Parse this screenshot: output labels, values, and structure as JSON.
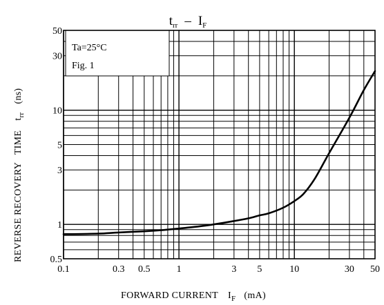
{
  "chart_data": {
    "type": "line",
    "title": {
      "main": "t",
      "main_sub": "rr",
      "dash": "–",
      "var": "I",
      "var_sub": "F"
    },
    "xlabel": {
      "text": "FORWARD CURRENT",
      "var": "I",
      "var_sub": "F",
      "unit": "(mA)"
    },
    "ylabel": {
      "text": "REVERSE RECOVERY   TIME",
      "var": "t",
      "var_sub": "rr",
      "unit": "(ns)"
    },
    "x_scale": "log",
    "y_scale": "log",
    "xlim": [
      0.1,
      50
    ],
    "ylim": [
      0.5,
      50
    ],
    "x_ticks": [
      {
        "value": 0.1,
        "label": "0.1"
      },
      {
        "value": 0.3,
        "label": "0.3"
      },
      {
        "value": 0.5,
        "label": "0.5"
      },
      {
        "value": 1,
        "label": "1"
      },
      {
        "value": 3,
        "label": "3"
      },
      {
        "value": 5,
        "label": "5"
      },
      {
        "value": 10,
        "label": "10"
      },
      {
        "value": 30,
        "label": "30"
      },
      {
        "value": 50,
        "label": "50"
      }
    ],
    "y_ticks": [
      {
        "value": 0.5,
        "label": "0.5"
      },
      {
        "value": 1,
        "label": "1"
      },
      {
        "value": 3,
        "label": "3"
      },
      {
        "value": 5,
        "label": "5"
      },
      {
        "value": 10,
        "label": "10"
      },
      {
        "value": 30,
        "label": "30"
      },
      {
        "value": 50,
        "label": "50"
      }
    ],
    "grid": true,
    "annotations": [
      "Ta=25°C",
      "Fig. 1"
    ],
    "series": [
      {
        "points": [
          [
            0.1,
            0.82
          ],
          [
            0.2,
            0.83
          ],
          [
            0.3,
            0.85
          ],
          [
            0.5,
            0.87
          ],
          [
            0.7,
            0.89
          ],
          [
            1,
            0.92
          ],
          [
            1.5,
            0.96
          ],
          [
            2,
            1.0
          ],
          [
            3,
            1.07
          ],
          [
            4,
            1.13
          ],
          [
            5,
            1.2
          ],
          [
            6,
            1.25
          ],
          [
            8,
            1.4
          ],
          [
            10,
            1.6
          ],
          [
            12,
            1.85
          ],
          [
            15,
            2.5
          ],
          [
            20,
            4.2
          ],
          [
            30,
            8.6
          ],
          [
            40,
            15
          ],
          [
            50,
            22
          ]
        ]
      }
    ]
  }
}
